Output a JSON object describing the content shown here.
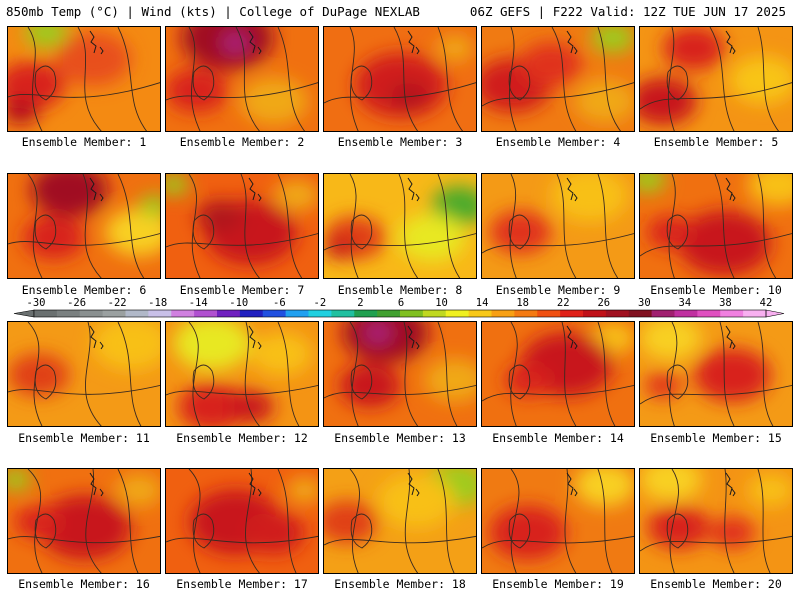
{
  "header": {
    "left": "850mb Temp (°C) | Wind (kts) | College of DuPage NEXLAB",
    "right": "06Z GEFS | F222 Valid: 12Z TUE JUN 17 2025"
  },
  "members": [
    {
      "label": "Ensemble Member: 1",
      "base": "#f48a12",
      "hot": [
        [
          0.15,
          0.55,
          0.22,
          "#d8201a"
        ],
        [
          0.08,
          0.8,
          0.12,
          "#b5101a"
        ],
        [
          0.55,
          0.3,
          0.25,
          "#e8501a"
        ]
      ],
      "cool": [
        [
          0.25,
          0.05,
          0.14,
          "#9ccc1a"
        ]
      ]
    },
    {
      "label": "Ensemble Member: 2",
      "base": "#f07010",
      "hot": [
        [
          0.4,
          0.1,
          0.3,
          "#a01020"
        ],
        [
          0.45,
          0.15,
          0.08,
          "#b02a8a"
        ],
        [
          0.2,
          0.6,
          0.2,
          "#d8201a"
        ]
      ],
      "cool": [
        [
          0.7,
          0.7,
          0.22,
          "#f0a814"
        ]
      ]
    },
    {
      "label": "Ensemble Member: 3",
      "base": "#f06e12",
      "hot": [
        [
          0.5,
          0.55,
          0.3,
          "#d01e1a"
        ],
        [
          0.55,
          0.65,
          0.12,
          "#b0121a"
        ]
      ],
      "cool": [
        [
          0.85,
          0.2,
          0.12,
          "#f0a814"
        ]
      ]
    },
    {
      "label": "Ensemble Member: 4",
      "base": "#f07a12",
      "hot": [
        [
          0.2,
          0.55,
          0.25,
          "#d01e1a"
        ],
        [
          0.45,
          0.35,
          0.2,
          "#e0301a"
        ]
      ],
      "cool": [
        [
          0.85,
          0.1,
          0.14,
          "#9ccc1a"
        ],
        [
          0.8,
          0.7,
          0.2,
          "#f0a814"
        ]
      ]
    },
    {
      "label": "Ensemble Member: 5",
      "base": "#f49414",
      "hot": [
        [
          0.15,
          0.7,
          0.22,
          "#c8141a"
        ],
        [
          0.35,
          0.2,
          0.2,
          "#d8201a"
        ]
      ],
      "cool": [
        [
          0.8,
          0.5,
          0.22,
          "#f8c418"
        ]
      ]
    },
    {
      "label": "Ensemble Member: 6",
      "base": "#f07010",
      "hot": [
        [
          0.4,
          0.15,
          0.25,
          "#a01020"
        ],
        [
          0.3,
          0.6,
          0.2,
          "#d8201a"
        ]
      ],
      "cool": [
        [
          0.85,
          0.55,
          0.22,
          "#f8d020"
        ],
        [
          0.95,
          0.3,
          0.1,
          "#9ccc1a"
        ]
      ]
    },
    {
      "label": "Ensemble Member: 7",
      "base": "#f06010",
      "hot": [
        [
          0.55,
          0.55,
          0.3,
          "#c8141a"
        ],
        [
          0.35,
          0.4,
          0.15,
          "#b0121a"
        ]
      ],
      "cool": [
        [
          0.05,
          0.1,
          0.1,
          "#9ccc1a"
        ],
        [
          0.85,
          0.2,
          0.15,
          "#f0a814"
        ]
      ]
    },
    {
      "label": "Ensemble Member: 8",
      "base": "#f8b818",
      "hot": [
        [
          0.2,
          0.6,
          0.2,
          "#e04018"
        ],
        [
          0.1,
          0.7,
          0.1,
          "#c8141a"
        ]
      ],
      "cool": [
        [
          0.88,
          0.3,
          0.18,
          "#4aaa2a"
        ],
        [
          0.7,
          0.6,
          0.22,
          "#e8e820"
        ]
      ]
    },
    {
      "label": "Ensemble Member: 9",
      "base": "#f49a16",
      "hot": [
        [
          0.25,
          0.55,
          0.2,
          "#e0301a"
        ]
      ],
      "cool": [
        [
          0.7,
          0.2,
          0.25,
          "#f8c018"
        ]
      ]
    },
    {
      "label": "Ensemble Member: 10",
      "base": "#f07010",
      "hot": [
        [
          0.55,
          0.65,
          0.3,
          "#c8141a"
        ],
        [
          0.2,
          0.55,
          0.15,
          "#d8201a"
        ]
      ],
      "cool": [
        [
          0.05,
          0.05,
          0.12,
          "#9ccc1a"
        ],
        [
          0.9,
          0.1,
          0.2,
          "#f8c018"
        ]
      ]
    },
    {
      "label": "Ensemble Member: 11",
      "base": "#f49a16",
      "hot": [
        [
          0.2,
          0.5,
          0.2,
          "#e04018"
        ]
      ],
      "cool": [
        [
          0.8,
          0.2,
          0.25,
          "#f8c018"
        ]
      ]
    },
    {
      "label": "Ensemble Member: 12",
      "base": "#f49414",
      "hot": [
        [
          0.3,
          0.8,
          0.22,
          "#d8201a"
        ],
        [
          0.55,
          0.8,
          0.15,
          "#c8141a"
        ]
      ],
      "cool": [
        [
          0.3,
          0.2,
          0.25,
          "#e8e820"
        ],
        [
          0.75,
          0.3,
          0.2,
          "#f8c018"
        ]
      ]
    },
    {
      "label": "Ensemble Member: 13",
      "base": "#f07010",
      "hot": [
        [
          0.4,
          0.1,
          0.28,
          "#a01020"
        ],
        [
          0.35,
          0.1,
          0.08,
          "#b02a8a"
        ],
        [
          0.3,
          0.6,
          0.2,
          "#c8141a"
        ]
      ],
      "cool": [
        [
          0.85,
          0.55,
          0.2,
          "#f0a814"
        ]
      ]
    },
    {
      "label": "Ensemble Member: 14",
      "base": "#f07010",
      "hot": [
        [
          0.55,
          0.4,
          0.3,
          "#c8141a"
        ],
        [
          0.3,
          0.55,
          0.15,
          "#d8201a"
        ]
      ],
      "cool": [
        [
          0.85,
          0.15,
          0.15,
          "#f8c018"
        ]
      ]
    },
    {
      "label": "Ensemble Member: 15",
      "base": "#f49a16",
      "hot": [
        [
          0.6,
          0.5,
          0.25,
          "#d8201a"
        ],
        [
          0.15,
          0.6,
          0.12,
          "#e0301a"
        ]
      ],
      "cool": [
        [
          0.2,
          0.15,
          0.2,
          "#f8d020"
        ]
      ]
    },
    {
      "label": "Ensemble Member: 16",
      "base": "#f07010",
      "hot": [
        [
          0.5,
          0.55,
          0.3,
          "#c8141a"
        ],
        [
          0.2,
          0.5,
          0.15,
          "#d8201a"
        ]
      ],
      "cool": [
        [
          0.05,
          0.1,
          0.1,
          "#9ccc1a"
        ],
        [
          0.85,
          0.2,
          0.15,
          "#f0a814"
        ]
      ]
    },
    {
      "label": "Ensemble Member: 17",
      "base": "#f06010",
      "hot": [
        [
          0.45,
          0.5,
          0.3,
          "#c8141a"
        ],
        [
          0.7,
          0.6,
          0.2,
          "#d01e1a"
        ]
      ],
      "cool": [
        [
          0.9,
          0.2,
          0.12,
          "#f0a814"
        ]
      ]
    },
    {
      "label": "Ensemble Member: 18",
      "base": "#f4a016",
      "hot": [
        [
          0.15,
          0.5,
          0.2,
          "#e04018"
        ]
      ],
      "cool": [
        [
          0.85,
          0.15,
          0.2,
          "#9ccc1a"
        ],
        [
          0.6,
          0.3,
          0.25,
          "#f8c018"
        ]
      ]
    },
    {
      "label": "Ensemble Member: 19",
      "base": "#f07a12",
      "hot": [
        [
          0.3,
          0.6,
          0.25,
          "#d8201a"
        ]
      ],
      "cool": [
        [
          0.8,
          0.15,
          0.2,
          "#f8d020"
        ]
      ]
    },
    {
      "label": "Ensemble Member: 20",
      "base": "#f49414",
      "hot": [
        [
          0.25,
          0.55,
          0.2,
          "#d8201a"
        ],
        [
          0.6,
          0.6,
          0.15,
          "#e0301a"
        ]
      ],
      "cool": [
        [
          0.2,
          0.1,
          0.2,
          "#f8d020"
        ],
        [
          0.85,
          0.2,
          0.15,
          "#f8c018"
        ]
      ]
    }
  ],
  "colorbar": {
    "tick_labels": [
      "-30",
      "-26",
      "-22",
      "-18",
      "-14",
      "-10",
      "-6",
      "-2",
      "2",
      "6",
      "10",
      "14",
      "18",
      "22",
      "26",
      "30",
      "34",
      "38",
      "42"
    ],
    "colors": [
      "#6a7070",
      "#7a8080",
      "#8a9090",
      "#9aa0a0",
      "#b0b8c8",
      "#c8c0e8",
      "#d080e0",
      "#b050d0",
      "#7020c0",
      "#2020c0",
      "#2050e0",
      "#20a0f0",
      "#20d0e0",
      "#20c0a0",
      "#20a050",
      "#40a030",
      "#80c020",
      "#c0d820",
      "#f0f020",
      "#f8c818",
      "#f8a014",
      "#f47a12",
      "#f05010",
      "#e02018",
      "#c01018",
      "#a01020",
      "#801020",
      "#a02070",
      "#c030a0",
      "#e050c0",
      "#f080e0",
      "#f8b0f0"
    ]
  }
}
